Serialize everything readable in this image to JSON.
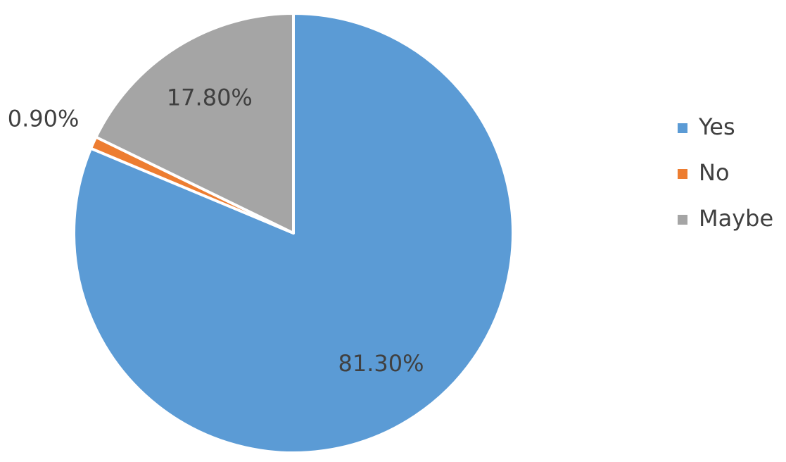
{
  "chart_data": {
    "type": "pie",
    "categories": [
      "Yes",
      "No",
      "Maybe"
    ],
    "values": [
      81.3,
      0.9,
      17.8
    ],
    "value_labels": [
      "81.30%",
      "0.90%",
      "17.80%"
    ],
    "colors": [
      "#5b9bd5",
      "#ed7d31",
      "#a5a5a5"
    ],
    "legend": "right"
  }
}
